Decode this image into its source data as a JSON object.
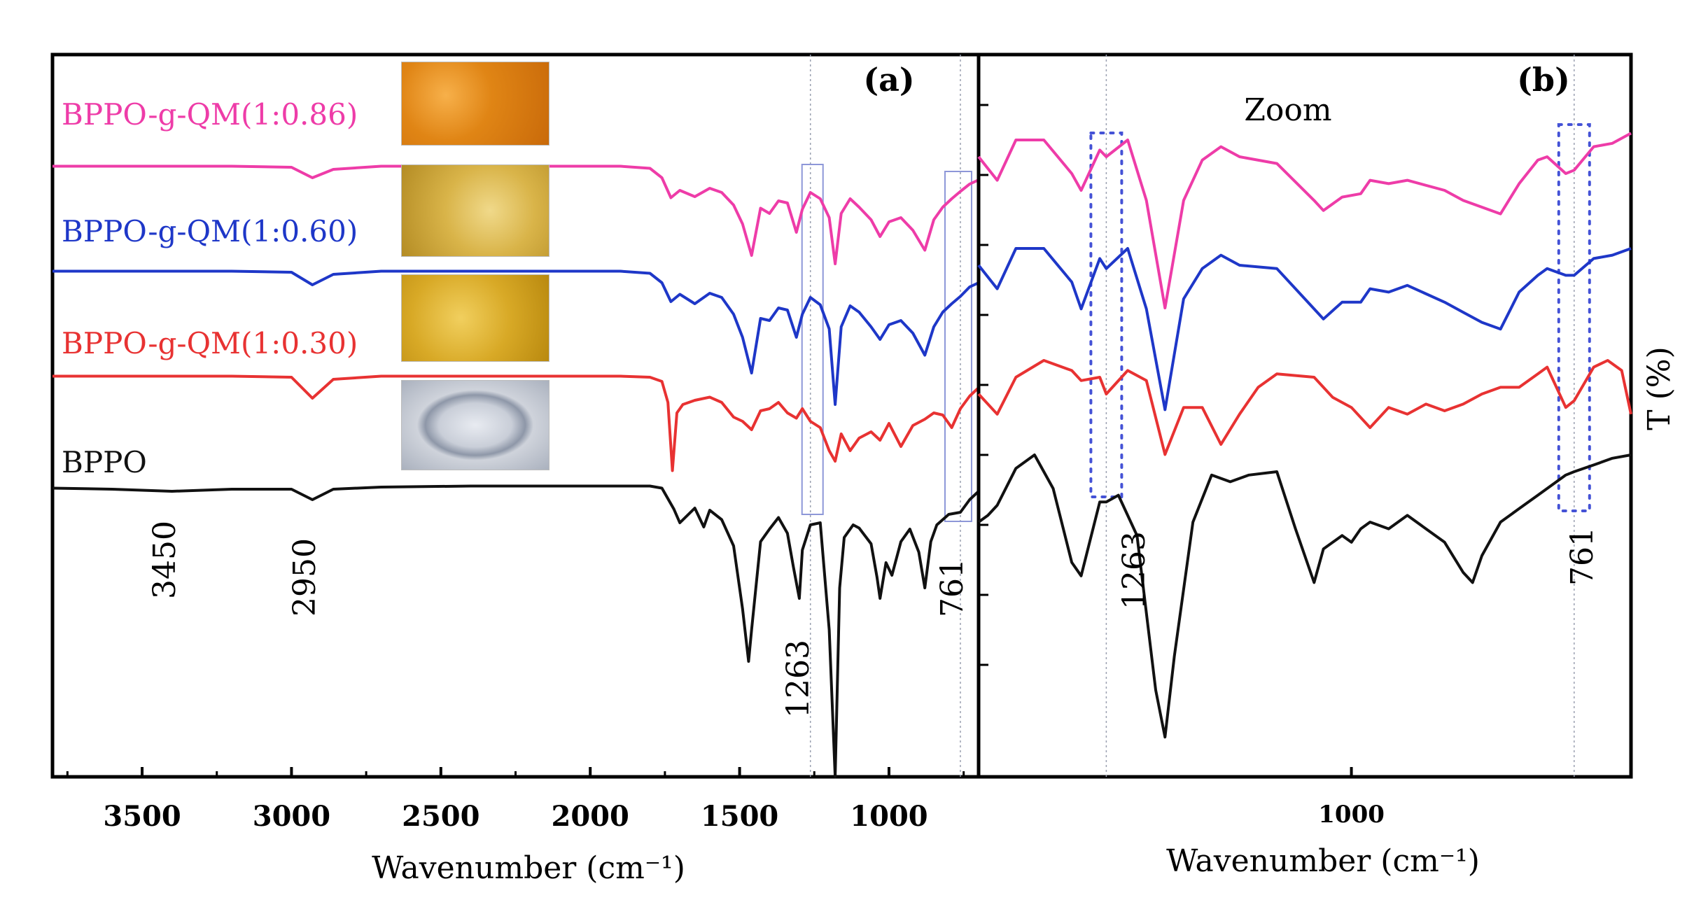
{
  "chart_data": [
    {
      "panel": "a",
      "type": "line",
      "panel_label": "(a)",
      "xlabel": "Wavenumber  (cm⁻¹)",
      "ylabel": "",
      "xlim": [
        3800,
        700
      ],
      "x_ticks": [
        "3500",
        "3000",
        "2500",
        "2000",
        "1500",
        "1000"
      ],
      "annotations": [
        "3450",
        "2950",
        "1263",
        "761"
      ],
      "series": [
        {
          "name": "BPPO-g-QM(1:0.86)",
          "color": "#ee3ca8",
          "x": [
            3800,
            3600,
            3400,
            3200,
            3000,
            2930,
            2860,
            2700,
            2400,
            2100,
            1900,
            1800,
            1760,
            1730,
            1700,
            1650,
            1600,
            1560,
            1520,
            1490,
            1460,
            1430,
            1400,
            1370,
            1340,
            1310,
            1290,
            1263,
            1230,
            1200,
            1180,
            1160,
            1130,
            1100,
            1060,
            1030,
            1000,
            960,
            920,
            880,
            850,
            820,
            790,
            761,
            730,
            700
          ],
          "y": [
            0.5,
            0.5,
            0.5,
            0.5,
            0.6,
            1.6,
            0.8,
            0.5,
            0.5,
            0.5,
            0.5,
            0.7,
            1.6,
            3.5,
            2.8,
            3.4,
            2.6,
            3.0,
            4.2,
            6.0,
            9.0,
            4.5,
            5.0,
            3.8,
            4.0,
            6.8,
            4.6,
            3.0,
            3.6,
            5.4,
            9.8,
            5.0,
            3.6,
            4.4,
            5.6,
            7.2,
            5.8,
            5.4,
            6.6,
            8.5,
            5.6,
            4.4,
            3.6,
            2.9,
            2.2,
            1.8
          ]
        },
        {
          "name": "BPPO-g-QM(1:0.60)",
          "color": "#1e37c8",
          "x": [
            3800,
            3600,
            3400,
            3200,
            3000,
            2930,
            2860,
            2700,
            2400,
            2100,
            1900,
            1800,
            1760,
            1730,
            1700,
            1650,
            1600,
            1560,
            1520,
            1490,
            1460,
            1430,
            1400,
            1370,
            1340,
            1310,
            1290,
            1263,
            1230,
            1200,
            1180,
            1160,
            1130,
            1100,
            1060,
            1030,
            1000,
            960,
            920,
            880,
            850,
            820,
            790,
            761,
            730,
            700
          ],
          "y": [
            0.5,
            0.5,
            0.5,
            0.5,
            0.6,
            1.8,
            0.8,
            0.5,
            0.5,
            0.5,
            0.5,
            0.7,
            1.6,
            3.4,
            2.7,
            3.6,
            2.6,
            3.0,
            4.6,
            6.8,
            10.2,
            5.0,
            5.2,
            4.0,
            4.2,
            6.8,
            4.6,
            3.0,
            3.7,
            6.0,
            13.2,
            5.8,
            3.8,
            4.4,
            5.8,
            7.0,
            5.6,
            5.2,
            6.4,
            8.5,
            5.8,
            4.4,
            3.6,
            2.9,
            2.0,
            1.6
          ]
        },
        {
          "name": "BPPO-g-QM(1:0.30)",
          "color": "#e83232",
          "x": [
            3800,
            3600,
            3400,
            3200,
            3000,
            2930,
            2860,
            2700,
            2400,
            2100,
            1900,
            1800,
            1760,
            1740,
            1725,
            1710,
            1690,
            1650,
            1600,
            1560,
            1520,
            1490,
            1460,
            1430,
            1400,
            1370,
            1340,
            1310,
            1290,
            1263,
            1230,
            1200,
            1180,
            1160,
            1130,
            1100,
            1060,
            1030,
            1000,
            960,
            920,
            880,
            850,
            820,
            790,
            761,
            730,
            700
          ],
          "y": [
            0.5,
            0.5,
            0.5,
            0.5,
            0.6,
            2.6,
            0.8,
            0.5,
            0.5,
            0.5,
            0.5,
            0.6,
            1.0,
            3.0,
            9.5,
            4.0,
            3.2,
            2.8,
            2.5,
            3.0,
            4.4,
            4.8,
            5.6,
            3.8,
            3.6,
            3.0,
            4.0,
            4.5,
            3.6,
            4.8,
            5.4,
            7.6,
            8.6,
            6.0,
            7.6,
            6.4,
            5.8,
            6.6,
            5.0,
            7.2,
            5.2,
            4.6,
            4.0,
            4.2,
            5.4,
            3.6,
            2.4,
            1.6
          ]
        },
        {
          "name": "BPPO",
          "color": "#111111",
          "x": [
            3800,
            3600,
            3400,
            3200,
            3000,
            2930,
            2860,
            2700,
            2400,
            2100,
            1900,
            1800,
            1760,
            1720,
            1700,
            1650,
            1620,
            1600,
            1560,
            1520,
            1490,
            1470,
            1460,
            1430,
            1400,
            1370,
            1340,
            1320,
            1300,
            1290,
            1263,
            1230,
            1200,
            1180,
            1165,
            1150,
            1120,
            1100,
            1060,
            1040,
            1030,
            1010,
            990,
            960,
            930,
            900,
            880,
            860,
            840,
            800,
            761,
            730,
            700
          ],
          "y": [
            0.5,
            0.6,
            0.8,
            0.6,
            0.6,
            1.6,
            0.6,
            0.4,
            0.3,
            0.3,
            0.3,
            0.3,
            0.5,
            2.5,
            3.8,
            2.4,
            4.2,
            2.6,
            3.5,
            6.0,
            12.0,
            17.0,
            14.0,
            5.6,
            4.4,
            3.3,
            4.8,
            8.0,
            11.0,
            6.4,
            4.0,
            3.8,
            14.0,
            28.0,
            10.0,
            5.2,
            4.0,
            4.3,
            5.8,
            9.0,
            11.0,
            7.6,
            8.8,
            5.6,
            4.4,
            6.6,
            10.0,
            5.6,
            4.0,
            3.0,
            2.8,
            1.6,
            0.8
          ]
        }
      ],
      "photo_names": [
        "orange sample photo",
        "yellow sample photo",
        "amber sample photo",
        "BPPO membrane photo"
      ]
    },
    {
      "panel": "b",
      "type": "line",
      "panel_label": "(b)",
      "title": "Zoom",
      "xlabel": "Wavenumber  (cm⁻¹)",
      "ylabel": "T (%)",
      "xlim": [
        1400,
        700
      ],
      "x_ticks": [
        "1000"
      ],
      "annotations": [
        "1263",
        "761"
      ],
      "series": [
        {
          "name": "BPPO-g-QM(1:0.86)",
          "color": "#ee3ca8",
          "x": [
            1400,
            1380,
            1360,
            1330,
            1300,
            1290,
            1270,
            1263,
            1240,
            1220,
            1200,
            1180,
            1160,
            1140,
            1120,
            1080,
            1040,
            1030,
            1010,
            990,
            980,
            960,
            940,
            900,
            880,
            860,
            840,
            820,
            800,
            790,
            770,
            761,
            740,
            720,
            700
          ],
          "y": [
            0.5,
            1.2,
            0,
            0,
            1.0,
            1.5,
            0.3,
            0.5,
            0.0,
            1.8,
            5.0,
            1.8,
            0.6,
            0.2,
            0.5,
            0.7,
            1.8,
            2.1,
            1.7,
            1.6,
            1.2,
            1.3,
            1.2,
            1.5,
            1.8,
            2.0,
            2.2,
            1.3,
            0.6,
            0.5,
            1.0,
            0.9,
            0.2,
            0.1,
            -0.2
          ]
        },
        {
          "name": "BPPO-g-QM(1:0.60)",
          "color": "#1e37c8",
          "x": [
            1400,
            1380,
            1360,
            1330,
            1300,
            1290,
            1270,
            1263,
            1240,
            1220,
            1200,
            1180,
            1160,
            1140,
            1120,
            1080,
            1040,
            1030,
            1010,
            990,
            980,
            960,
            940,
            900,
            880,
            860,
            840,
            820,
            800,
            790,
            770,
            761,
            740,
            720,
            700
          ],
          "y": [
            0.5,
            1.2,
            0,
            0,
            1.0,
            1.8,
            0.3,
            0.6,
            0.0,
            1.8,
            4.8,
            1.5,
            0.6,
            0.2,
            0.5,
            0.6,
            1.8,
            2.1,
            1.6,
            1.6,
            1.2,
            1.3,
            1.1,
            1.6,
            1.9,
            2.2,
            2.4,
            1.3,
            0.8,
            0.6,
            0.8,
            0.8,
            0.3,
            0.2,
            0.0
          ]
        },
        {
          "name": "BPPO-g-QM(1:0.30)",
          "color": "#e83232",
          "x": [
            1400,
            1380,
            1360,
            1330,
            1300,
            1290,
            1270,
            1263,
            1240,
            1220,
            1200,
            1180,
            1160,
            1140,
            1120,
            1100,
            1080,
            1040,
            1020,
            1000,
            980,
            960,
            940,
            920,
            900,
            880,
            860,
            840,
            820,
            800,
            790,
            770,
            761,
            740,
            725,
            710,
            700
          ],
          "y": [
            1.0,
            1.6,
            0.5,
            0,
            0.3,
            0.6,
            0.5,
            1.0,
            0.3,
            0.6,
            2.8,
            1.4,
            1.4,
            2.5,
            1.6,
            0.8,
            0.4,
            0.5,
            1.1,
            1.4,
            2.0,
            1.4,
            1.6,
            1.3,
            1.5,
            1.3,
            1.0,
            0.8,
            0.8,
            0.4,
            0.2,
            1.4,
            1.2,
            0.2,
            0,
            0.3,
            1.6
          ]
        },
        {
          "name": "BPPO",
          "color": "#111111",
          "x": [
            1400,
            1390,
            1380,
            1360,
            1340,
            1320,
            1300,
            1290,
            1270,
            1263,
            1250,
            1230,
            1210,
            1200,
            1190,
            1170,
            1150,
            1130,
            1110,
            1080,
            1060,
            1040,
            1030,
            1010,
            1000,
            990,
            980,
            960,
            940,
            920,
            900,
            880,
            870,
            860,
            840,
            820,
            800,
            790,
            770,
            761,
            740,
            720,
            700
          ],
          "y": [
            2.0,
            1.8,
            1.5,
            0.4,
            0,
            1.0,
            3.2,
            3.6,
            1.4,
            1.4,
            1.2,
            2.4,
            7.0,
            8.4,
            6.0,
            2.0,
            0.6,
            0.8,
            0.6,
            0.5,
            2.2,
            3.8,
            2.8,
            2.4,
            2.6,
            2.2,
            2.0,
            2.2,
            1.8,
            2.2,
            2.6,
            3.5,
            3.8,
            3.0,
            2.0,
            1.6,
            1.2,
            1.0,
            0.6,
            0.5,
            0.3,
            0.1,
            0.0
          ]
        }
      ]
    }
  ]
}
